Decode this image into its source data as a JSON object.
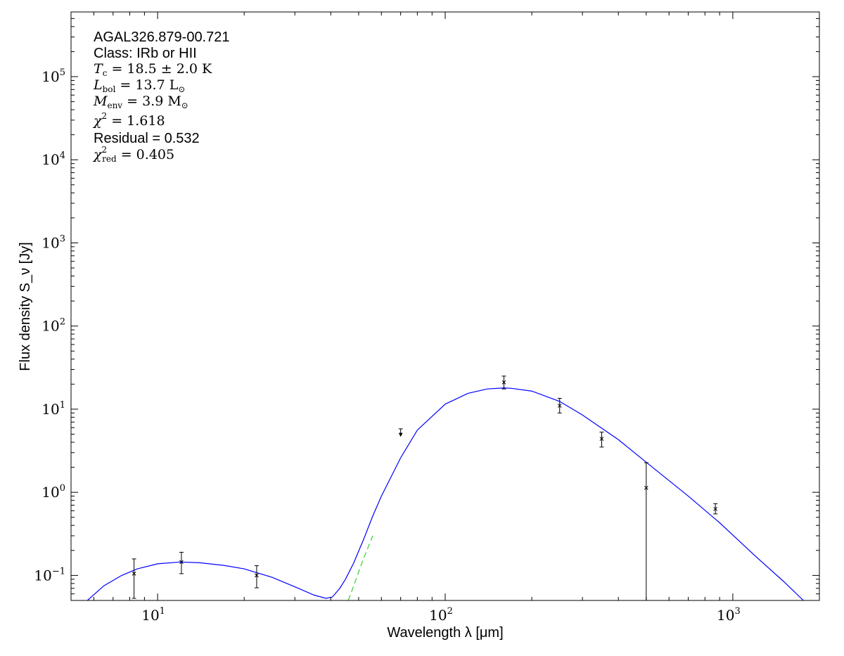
{
  "chart_data": {
    "type": "scatter",
    "xscale": "log",
    "yscale": "log",
    "xlim": [
      5.0,
      2000.0
    ],
    "ylim": [
      0.05,
      600000.0
    ],
    "xlabel": "Wavelength λ [μm]",
    "ylabel": "Flux density S_ν [Jy]",
    "xticks": [
      {
        "base": "10",
        "exp": "1",
        "value": 10
      },
      {
        "base": "10",
        "exp": "2",
        "value": 100
      },
      {
        "base": "10",
        "exp": "3",
        "value": 1000
      }
    ],
    "yticks": [
      {
        "base": "10",
        "exp": "−1",
        "value": 0.1
      },
      {
        "base": "10",
        "exp": "0",
        "value": 1
      },
      {
        "base": "10",
        "exp": "1",
        "value": 10
      },
      {
        "base": "10",
        "exp": "2",
        "value": 100
      },
      {
        "base": "10",
        "exp": "3",
        "value": 1000
      },
      {
        "base": "10",
        "exp": "4",
        "value": 10000
      },
      {
        "base": "10",
        "exp": "5",
        "value": 100000
      }
    ],
    "annotations": {
      "source": "AGAL326.879-00.721",
      "class": "Class: IRb or HII",
      "tc_sym": "T",
      "tc_sub": "c",
      "tc_val": " = 18.5 ± 2.0 K",
      "lbol_sym": "L",
      "lbol_sub": "bol",
      "lbol_val": " = 13.7 L",
      "lbol_unit_sub": "⊙",
      "menv_sym": "M",
      "menv_sub": "env",
      "menv_val": " = 3.9 M",
      "menv_unit_sub": "⊙",
      "chi2_sym": "χ",
      "chi2_sup": "2",
      "chi2_val": " = 1.618",
      "residual": "Residual = 0.532",
      "chi2red_sym": "χ",
      "chi2red_sup": "2",
      "chi2red_sub": "red",
      "chi2red_val": " = 0.405"
    },
    "points": [
      {
        "x": 8.28,
        "y": 0.105,
        "yerr_low": 0.053,
        "yerr_high": 0.158
      },
      {
        "x": 12.1,
        "y": 0.145,
        "yerr_low": 0.105,
        "yerr_high": 0.19
      },
      {
        "x": 22.1,
        "y": 0.1,
        "yerr_low": 0.071,
        "yerr_high": 0.131
      },
      {
        "x": 160,
        "y": 21.0,
        "yerr_low": 17.5,
        "yerr_high": 25.0
      },
      {
        "x": 250,
        "y": 11.0,
        "yerr_low": 9.0,
        "yerr_high": 13.5
      },
      {
        "x": 350,
        "y": 4.4,
        "yerr_low": 3.5,
        "yerr_high": 5.3
      },
      {
        "x": 500,
        "y": 1.13,
        "yerr_low": 0.05,
        "yerr_high": 2.27
      },
      {
        "x": 870,
        "y": 0.63,
        "yerr_low": 0.55,
        "yerr_high": 0.73
      }
    ],
    "upper_limits": [
      {
        "x": 70,
        "y": 5.8
      }
    ],
    "series": [
      {
        "style": "solid",
        "color": "#0000ff",
        "x": [
          5.7,
          6.5,
          7.5,
          8.5,
          10,
          12,
          14,
          17,
          20,
          25,
          30,
          35,
          38.5,
          40.5,
          43,
          45,
          48,
          52,
          56,
          60,
          70,
          80,
          100,
          120,
          140,
          160,
          170,
          200,
          250,
          300,
          400,
          500,
          700,
          900,
          1200,
          1500,
          1760
        ],
        "y": [
          0.05,
          0.075,
          0.1,
          0.12,
          0.138,
          0.145,
          0.142,
          0.132,
          0.12,
          0.095,
          0.073,
          0.058,
          0.053,
          0.055,
          0.07,
          0.09,
          0.14,
          0.27,
          0.52,
          0.9,
          2.6,
          5.6,
          11.5,
          15.5,
          17.5,
          18.0,
          17.8,
          16.5,
          12.4,
          8.5,
          4.3,
          2.3,
          0.9,
          0.43,
          0.17,
          0.085,
          0.05
        ]
      },
      {
        "style": "dashed",
        "color": "#33cc33",
        "x": [
          46,
          48,
          50,
          52,
          54,
          56
        ],
        "y": [
          0.05,
          0.074,
          0.11,
          0.16,
          0.22,
          0.3
        ]
      }
    ]
  }
}
